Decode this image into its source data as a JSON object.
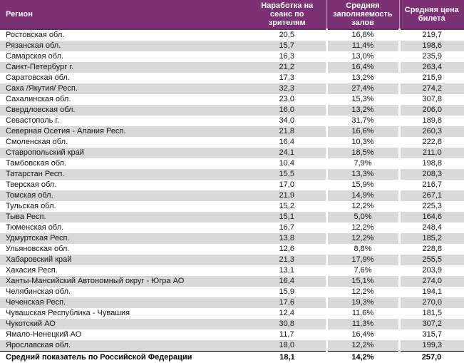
{
  "colors": {
    "header_bg": "#7b3173",
    "header_text": "#ffffff",
    "header_divider_line": "#682a5f",
    "alt_row_bg": "#d9d9d9",
    "body_text": "#141414",
    "total_top_border": "#000000",
    "total_bottom_border": "#a6a6a6"
  },
  "chart_data": {
    "type": "table",
    "columns": [
      "Регион",
      "Наработка на сеанс по зрителям",
      "Средняя заполняемость залов",
      "Средняя цена билета"
    ],
    "rows": [
      [
        "Ростовская обл.",
        "20,5",
        "16,8%",
        "219,7"
      ],
      [
        "Рязанская обл.",
        "15,7",
        "11,4%",
        "198,6"
      ],
      [
        "Самарская обл.",
        "16,3",
        "13,0%",
        "235,9"
      ],
      [
        "Санкт-Петербург г.",
        "21,2",
        "16,4%",
        "263,4"
      ],
      [
        "Саратовская обл.",
        "17,3",
        "13,2%",
        "215,9"
      ],
      [
        "Саха /Якутия/ Респ.",
        "32,3",
        "27,4%",
        "274,2"
      ],
      [
        "Сахалинская обл.",
        "23,0",
        "15,3%",
        "307,8"
      ],
      [
        "Свердловская обл.",
        "16,0",
        "13,2%",
        "206,0"
      ],
      [
        "Севастополь г.",
        "34,0",
        "31,7%",
        "189,8"
      ],
      [
        "Северная Осетия - Алания Респ.",
        "21,8",
        "16,6%",
        "260,3"
      ],
      [
        "Смоленская обл.",
        "16,4",
        "10,3%",
        "222,8"
      ],
      [
        "Ставропольский край",
        "24,1",
        "18,5%",
        "211,0"
      ],
      [
        "Тамбовская обл.",
        "10,4",
        "7,9%",
        "198,8"
      ],
      [
        "Татарстан Респ.",
        "15,5",
        "13,3%",
        "208,3"
      ],
      [
        "Тверская обл.",
        "17,0",
        "15,9%",
        "216,7"
      ],
      [
        "Томская обл.",
        "21,9",
        "14,9%",
        "267,1"
      ],
      [
        "Тульская обл.",
        "15,2",
        "12,2%",
        "225,3"
      ],
      [
        "Тыва Респ.",
        "15,1",
        "5,0%",
        "164,6"
      ],
      [
        "Тюменская обл.",
        "16,7",
        "12,2%",
        "248,4"
      ],
      [
        "Удмуртская Респ.",
        "13,8",
        "12,2%",
        "185,2"
      ],
      [
        "Ульяновская обл.",
        "12,6",
        "8,8%",
        "228,8"
      ],
      [
        "Хабаровский край",
        "21,3",
        "17,9%",
        "255,5"
      ],
      [
        "Хакасия Респ.",
        "13,1",
        "7,6%",
        "203,9"
      ],
      [
        "Ханты-Мансийский Автономный округ - Югра АО",
        "16,4",
        "15,1%",
        "274,0"
      ],
      [
        "Челябинская обл.",
        "15,9",
        "12,2%",
        "194,1"
      ],
      [
        "Чеченская Респ.",
        "17,6",
        "19,3%",
        "270,0"
      ],
      [
        "Чувашская Республика - Чувашия",
        "12,4",
        "11,6%",
        "181,5"
      ],
      [
        "Чукотский АО",
        "30,8",
        "11,3%",
        "307,2"
      ],
      [
        "Ямало-Ненецкий АО",
        "11,7",
        "16,4%",
        "315,7"
      ],
      [
        "Ярославская обл.",
        "18,0",
        "12,2%",
        "199,3"
      ]
    ],
    "total_row": [
      "Средний показатель по Российской Федерации",
      "18,1",
      "14,2%",
      "257,0"
    ]
  }
}
